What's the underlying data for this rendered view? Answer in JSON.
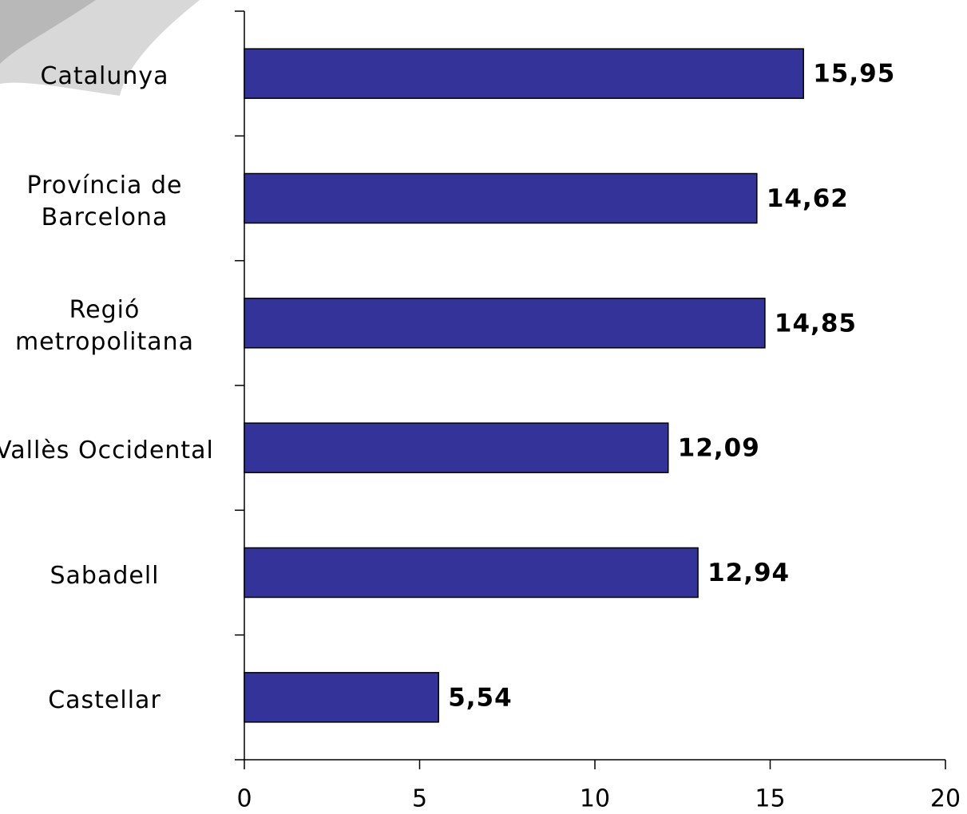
{
  "chart_data": {
    "type": "barh",
    "categories": [
      "Catalunya",
      "Província de Barcelona",
      "Regió metropolitana",
      "Vallès Occidental",
      "Sabadell",
      "Castellar"
    ],
    "values": [
      15.95,
      14.62,
      14.85,
      12.09,
      12.94,
      5.54
    ],
    "value_labels": [
      "15,95",
      "14,62",
      "14,85",
      "12,09",
      "12,94",
      "5,54"
    ],
    "color": "#333399",
    "xlim": [
      0,
      20
    ],
    "xticks": [
      0,
      5,
      10,
      15,
      20
    ]
  }
}
